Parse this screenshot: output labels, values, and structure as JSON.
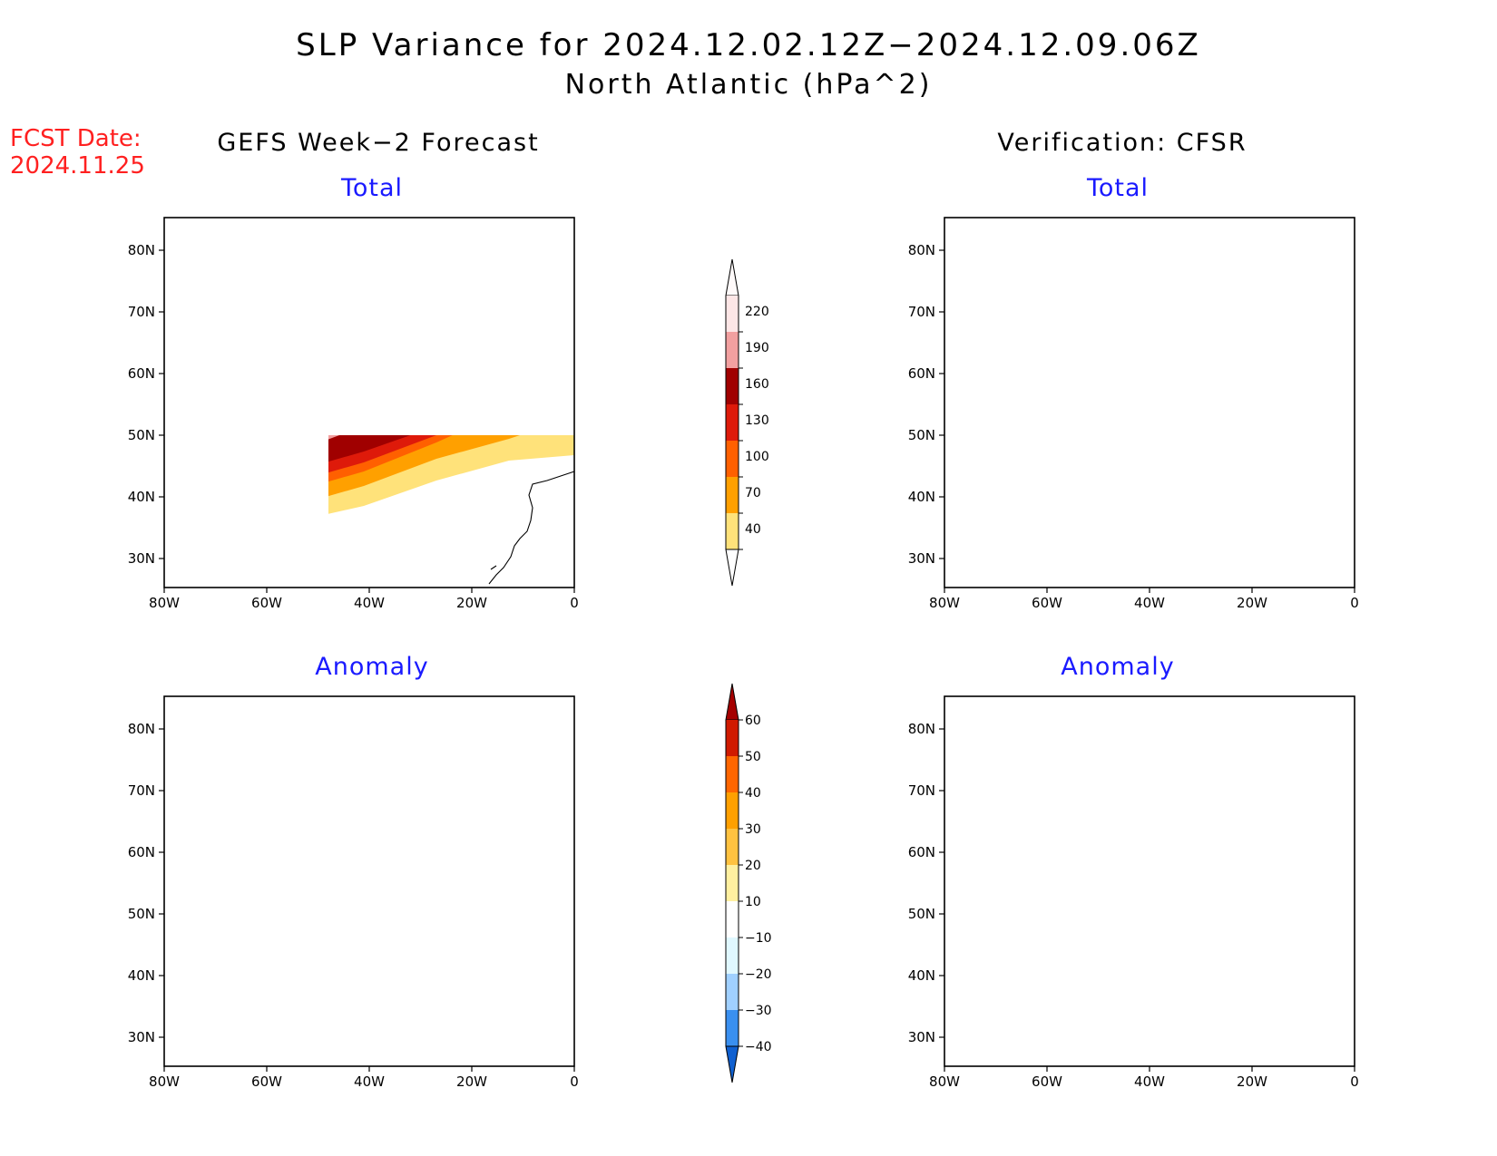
{
  "title": "SLP Variance for 2024.12.02.12Z−2024.12.09.06Z",
  "subtitle": "North Atlantic (hPa^2)",
  "fcst_label": "FCST Date:",
  "fcst_date": "2024.11.25",
  "columns": {
    "left": "GEFS Week−2 Forecast",
    "right": "Verification: CFSR"
  },
  "panel_titles": {
    "total": "Total",
    "anomaly": "Anomaly"
  },
  "axes": {
    "lat_labels": [
      "80N",
      "70N",
      "60N",
      "50N",
      "40N",
      "30N"
    ],
    "lon_labels": [
      "80W",
      "60W",
      "40W",
      "20W",
      "0"
    ]
  },
  "colorbars": {
    "total": {
      "levels": [
        "220",
        "190",
        "160",
        "130",
        "100",
        "70",
        "40"
      ],
      "colors": [
        "#fde6e6",
        "#f2a0a0",
        "#a00000",
        "#de1a0a",
        "#ff6000",
        "#ffa000",
        "#ffe27a"
      ]
    },
    "anomaly": {
      "levels": [
        "60",
        "50",
        "40",
        "30",
        "20",
        "10",
        "−10",
        "−20",
        "−30",
        "−40"
      ],
      "colors": [
        "#a50000",
        "#d01a00",
        "#ff6600",
        "#ffa000",
        "#ffc240",
        "#fff0a0",
        "#ffffff",
        "#e0f8ff",
        "#a0d0ff",
        "#3a90f0",
        "#1060d0"
      ]
    }
  },
  "colors": {
    "title_text": "#000000",
    "fcst_text": "#ff2020",
    "panel_title": "#1a1aff"
  }
}
